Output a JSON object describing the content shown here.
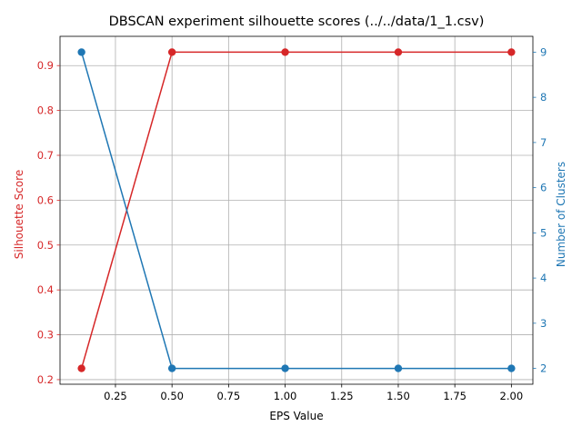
{
  "chart_data": {
    "type": "line",
    "title": "DBSCAN experiment silhouette scores (../../data/1_1.csv)",
    "xlabel": "EPS Value",
    "ylabel_left": "Silhouette Score",
    "ylabel_right": "Number of Clusters",
    "x": [
      0.1,
      0.5,
      1.0,
      1.5,
      2.0
    ],
    "series": [
      {
        "axis": "left",
        "color": "#d62728",
        "values": [
          0.225,
          0.93,
          0.93,
          0.93,
          0.93
        ]
      },
      {
        "axis": "right",
        "color": "#1f77b4",
        "values": [
          9,
          2,
          2,
          2,
          2
        ]
      }
    ],
    "xlim": [
      0.005,
      2.095
    ],
    "ylim_left": [
      0.18975,
      0.96525
    ],
    "ylim_right": [
      1.65,
      9.35
    ],
    "xticks": [
      "0.25",
      "0.50",
      "0.75",
      "1.00",
      "1.25",
      "1.50",
      "1.75",
      "2.00"
    ],
    "xtick_values": [
      0.25,
      0.5,
      0.75,
      1.0,
      1.25,
      1.5,
      1.75,
      2.0
    ],
    "yticks_left": [
      "0.2",
      "0.3",
      "0.4",
      "0.5",
      "0.6",
      "0.7",
      "0.8",
      "0.9"
    ],
    "ytick_values_left": [
      0.2,
      0.3,
      0.4,
      0.5,
      0.6,
      0.7,
      0.8,
      0.9
    ],
    "yticks_right": [
      "2",
      "3",
      "4",
      "5",
      "6",
      "7",
      "8",
      "9"
    ],
    "ytick_values_right": [
      2,
      3,
      4,
      5,
      6,
      7,
      8,
      9
    ],
    "grid": true
  }
}
